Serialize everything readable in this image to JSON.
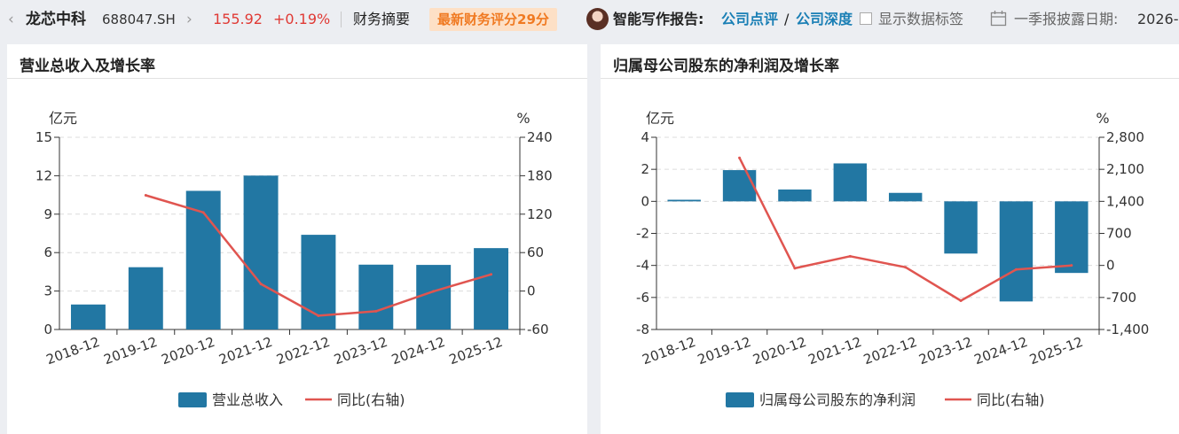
{
  "topbar": {
    "back_arrow": "‹",
    "stock_name": "龙芯中科",
    "stock_code": "688047.SH",
    "forward_arrow": "›",
    "price": "155.92",
    "change": "+0.19%",
    "finance_summary": "财务摘要",
    "score_badge": "最新财务评分29分",
    "writing_label": "智能写作报告:",
    "link_company_review": "公司点评",
    "link_separator": "/",
    "link_company_depth": "公司深度",
    "show_labels": "显示数据标签",
    "disclosure_label": "一季报披露日期:",
    "disclosure_date": "2026-0",
    "colors": {
      "up": "#e03a35",
      "link": "#1a7fb5",
      "badge_bg": "#fde0c6",
      "badge_text": "#f07a22"
    }
  },
  "chart_data": [
    {
      "type": "bar",
      "title": "营业总收入及增长率",
      "categories": [
        "2018-12",
        "2019-12",
        "2020-12",
        "2021-12",
        "2022-12",
        "2023-12",
        "2024-12",
        "2025-12"
      ],
      "series": [
        {
          "name": "营业总收入",
          "type": "bar",
          "axis": "left",
          "color": "#2277a3",
          "values": [
            1.95,
            4.86,
            10.82,
            12.01,
            7.39,
            5.06,
            5.04,
            6.35
          ]
        },
        {
          "name": "同比(右轴)",
          "type": "line",
          "axis": "right",
          "color": "#e05550",
          "values": [
            null,
            149.5,
            122.7,
            11.0,
            -38.5,
            -31.5,
            -0.4,
            26.0
          ]
        }
      ],
      "ylabel": "亿元",
      "y2label": "%",
      "ylim": [
        0,
        15
      ],
      "y2lim": [
        -60,
        240
      ],
      "yticks": [
        0,
        3,
        6,
        9,
        12,
        15
      ],
      "y2ticks": [
        -60,
        0,
        60,
        120,
        180,
        240
      ],
      "grid": true,
      "legend": "bottom"
    },
    {
      "type": "bar",
      "title": "归属母公司股东的净利润及增长率",
      "categories": [
        "2018-12",
        "2019-12",
        "2020-12",
        "2021-12",
        "2022-12",
        "2023-12",
        "2024-12",
        "2025-12"
      ],
      "series": [
        {
          "name": "归属母公司股东的净利润",
          "type": "bar",
          "axis": "left",
          "color": "#2277a3",
          "values": [
            0.1,
            1.95,
            0.74,
            2.37,
            0.53,
            -3.26,
            -6.25,
            -4.47
          ]
        },
        {
          "name": "同比(右轴)",
          "type": "line",
          "axis": "right",
          "color": "#e05550",
          "values": [
            null,
            2350,
            -62,
            200,
            -40,
            -771,
            -89,
            0
          ]
        }
      ],
      "ylabel": "亿元",
      "y2label": "%",
      "ylim": [
        -8,
        4
      ],
      "y2lim": [
        -1400,
        2800
      ],
      "yticks": [
        -8,
        -6,
        -4,
        -2,
        0,
        2,
        4
      ],
      "y2ticks": [
        -1400,
        -700,
        0,
        700,
        1400,
        2100,
        2800
      ],
      "ytick_labels": [
        "-8",
        "-6",
        "-4",
        "-2",
        "0",
        "2",
        "4"
      ],
      "y2tick_labels": [
        "-1,400",
        "-700",
        "0",
        "700",
        "1,400",
        "2,100",
        "2,800"
      ],
      "grid": true,
      "legend": "bottom"
    }
  ]
}
